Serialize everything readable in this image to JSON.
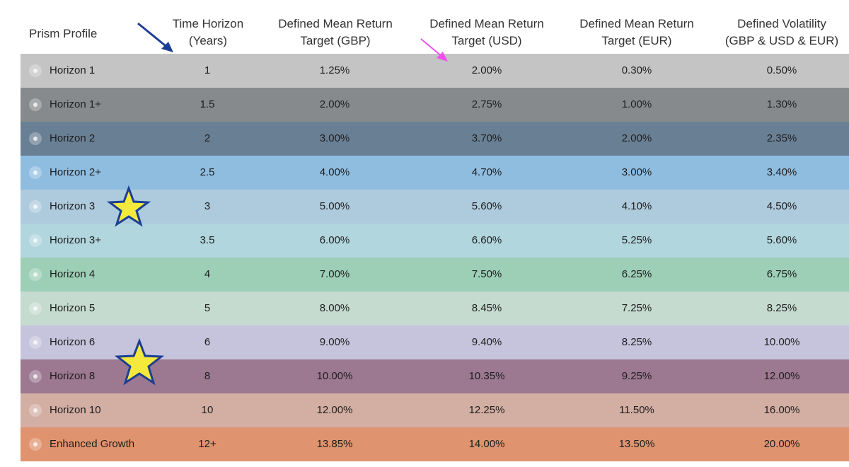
{
  "table": {
    "headers": {
      "profile": "Prism Profile",
      "time_horizon": [
        "Time Horizon",
        "(Years)"
      ],
      "gbp": [
        "Defined Mean Return",
        "Target (GBP)"
      ],
      "usd": [
        "Defined Mean Return",
        "Target (USD)"
      ],
      "eur": [
        "Defined Mean Return",
        "Target (EUR)"
      ],
      "volatility": [
        "Defined Volatility",
        "(GBP & USD & EUR)"
      ]
    },
    "rows": [
      {
        "name": "Horizon 1",
        "years": "1",
        "gbp": "1.25%",
        "usd": "2.00%",
        "eur": "0.30%",
        "vol": "0.50%",
        "color": "#c4c4c4"
      },
      {
        "name": "Horizon 1+",
        "years": "1.5",
        "gbp": "2.00%",
        "usd": "2.75%",
        "eur": "1.00%",
        "vol": "1.30%",
        "color": "#878a8d"
      },
      {
        "name": "Horizon 2",
        "years": "2",
        "gbp": "3.00%",
        "usd": "3.70%",
        "eur": "2.00%",
        "vol": "2.35%",
        "color": "#697f94"
      },
      {
        "name": "Horizon 2+",
        "years": "2.5",
        "gbp": "4.00%",
        "usd": "4.70%",
        "eur": "3.00%",
        "vol": "3.40%",
        "color": "#8fbde0"
      },
      {
        "name": "Horizon 3",
        "years": "3",
        "gbp": "5.00%",
        "usd": "5.60%",
        "eur": "4.10%",
        "vol": "4.50%",
        "color": "#aecadd"
      },
      {
        "name": "Horizon 3+",
        "years": "3.5",
        "gbp": "6.00%",
        "usd": "6.60%",
        "eur": "5.25%",
        "vol": "5.60%",
        "color": "#b1d6de"
      },
      {
        "name": "Horizon 4",
        "years": "4",
        "gbp": "7.00%",
        "usd": "7.50%",
        "eur": "6.25%",
        "vol": "6.75%",
        "color": "#9dcfb6"
      },
      {
        "name": "Horizon 5",
        "years": "5",
        "gbp": "8.00%",
        "usd": "8.45%",
        "eur": "7.25%",
        "vol": "8.25%",
        "color": "#c5dbd0"
      },
      {
        "name": "Horizon 6",
        "years": "6",
        "gbp": "9.00%",
        "usd": "9.40%",
        "eur": "8.25%",
        "vol": "10.00%",
        "color": "#c6c4dc"
      },
      {
        "name": "Horizon 8",
        "years": "8",
        "gbp": "10.00%",
        "usd": "10.35%",
        "eur": "9.25%",
        "vol": "12.00%",
        "color": "#9c7891"
      },
      {
        "name": "Horizon 10",
        "years": "10",
        "gbp": "12.00%",
        "usd": "12.25%",
        "eur": "11.50%",
        "vol": "16.00%",
        "color": "#d3aea3"
      },
      {
        "name": "Enhanced Growth",
        "years": "12+",
        "gbp": "13.85%",
        "usd": "14.00%",
        "eur": "13.50%",
        "vol": "20.00%",
        "color": "#df936f"
      }
    ]
  },
  "annotations": {
    "blue_arrow_color": "#1c3f94",
    "pink_arrow_color": "#f050ee",
    "star_fill": "#f5ea3c",
    "star_stroke": "#1c3f94"
  }
}
